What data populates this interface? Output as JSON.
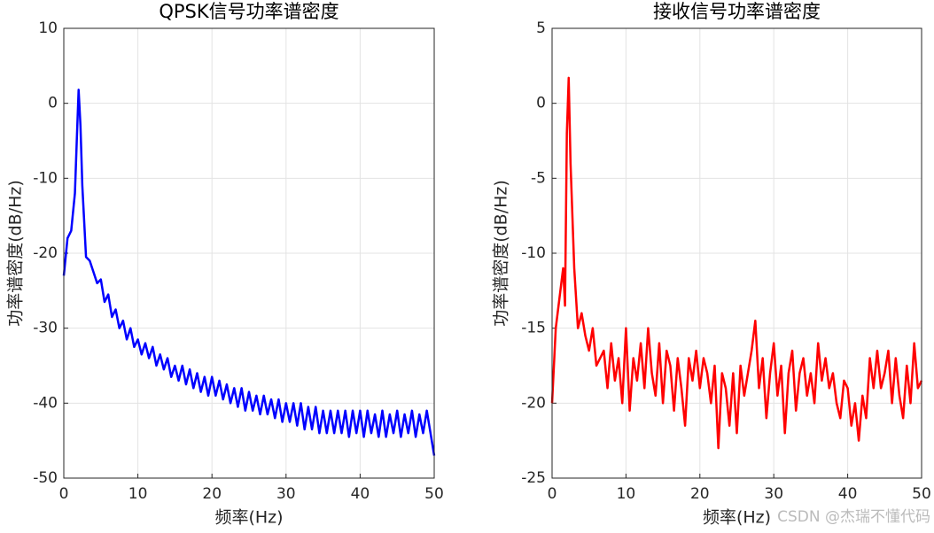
{
  "chart_data": [
    {
      "type": "line",
      "title": "QPSK信号功率谱密度",
      "xlabel": "频率(Hz)",
      "ylabel": "功率谱密度(dB/Hz)",
      "color": "#0000ff",
      "grid": true,
      "xlim": [
        0,
        50
      ],
      "ylim": [
        -50,
        10
      ],
      "xticks": [
        0,
        10,
        20,
        30,
        40,
        50
      ],
      "yticks": [
        -50,
        -40,
        -30,
        -20,
        -10,
        0,
        10
      ],
      "x": [
        0,
        0.5,
        1,
        1.5,
        1.75,
        2,
        2.25,
        2.5,
        3,
        3.5,
        4,
        4.5,
        5,
        5.5,
        6,
        6.5,
        7,
        7.5,
        8,
        8.5,
        9,
        9.5,
        10,
        10.5,
        11,
        11.5,
        12,
        12.5,
        13,
        13.5,
        14,
        14.5,
        15,
        15.5,
        16,
        16.5,
        17,
        17.5,
        18,
        18.5,
        19,
        19.5,
        20,
        20.5,
        21,
        21.5,
        22,
        22.5,
        23,
        23.5,
        24,
        24.5,
        25,
        25.5,
        26,
        26.5,
        27,
        27.5,
        28,
        28.5,
        29,
        29.5,
        30,
        30.5,
        31,
        31.5,
        32,
        32.5,
        33,
        33.5,
        34,
        34.5,
        35,
        35.5,
        36,
        36.5,
        37,
        37.5,
        38,
        38.5,
        39,
        39.5,
        40,
        40.5,
        41,
        41.5,
        42,
        42.5,
        43,
        43.5,
        44,
        44.5,
        45,
        45.5,
        46,
        46.5,
        47,
        47.5,
        48,
        48.5,
        49,
        49.5,
        50
      ],
      "values": [
        -23,
        -18,
        -17,
        -12,
        -5,
        1.8,
        -3,
        -11,
        -20.5,
        -21,
        -22.5,
        -24,
        -23.5,
        -26.5,
        -25.5,
        -28.5,
        -27.5,
        -30,
        -29,
        -31.5,
        -30,
        -32.5,
        -31.5,
        -33.5,
        -32,
        -34,
        -32.5,
        -35,
        -33.5,
        -35.5,
        -34,
        -36.5,
        -35,
        -37,
        -35,
        -37.5,
        -35.5,
        -38,
        -36,
        -38.5,
        -36.5,
        -39,
        -36.5,
        -39,
        -37,
        -39.5,
        -37.5,
        -40,
        -38,
        -40.5,
        -38,
        -41,
        -38.5,
        -41,
        -39,
        -41.5,
        -39,
        -41.5,
        -39.5,
        -42,
        -39.5,
        -42.5,
        -40,
        -42.5,
        -40,
        -43,
        -40,
        -43.5,
        -40.5,
        -43.5,
        -40.5,
        -44,
        -41,
        -44,
        -41,
        -44,
        -41,
        -44,
        -41,
        -44.5,
        -41,
        -44,
        -41,
        -44.5,
        -41,
        -44,
        -41.5,
        -44.5,
        -41,
        -44.5,
        -41.5,
        -44,
        -41,
        -44.5,
        -41.5,
        -44,
        -41,
        -44.5,
        -41.5,
        -44,
        -41,
        -44,
        -47
      ]
    },
    {
      "type": "line",
      "title": "接收信号功率谱密度",
      "xlabel": "频率(Hz)",
      "ylabel": "功率谱密度(dB/Hz)",
      "color": "#ff0000",
      "grid": true,
      "xlim": [
        0,
        50
      ],
      "ylim": [
        -25,
        5
      ],
      "xticks": [
        0,
        10,
        20,
        30,
        40,
        50
      ],
      "yticks": [
        -25,
        -20,
        -15,
        -10,
        -5,
        0,
        5
      ],
      "x": [
        0,
        0.5,
        1,
        1.5,
        1.75,
        2,
        2.25,
        2.5,
        3,
        3.5,
        4,
        4.5,
        5,
        5.5,
        6,
        6.5,
        7,
        7.5,
        8,
        8.5,
        9,
        9.5,
        10,
        10.5,
        11,
        11.5,
        12,
        12.5,
        13,
        13.5,
        14,
        14.5,
        15,
        15.5,
        16,
        16.5,
        17,
        17.5,
        18,
        18.5,
        19,
        19.5,
        20,
        20.5,
        21,
        21.5,
        22,
        22.5,
        23,
        23.5,
        24,
        24.5,
        25,
        25.5,
        26,
        26.5,
        27,
        27.5,
        28,
        28.5,
        29,
        29.5,
        30,
        30.5,
        31,
        31.5,
        32,
        32.5,
        33,
        33.5,
        34,
        34.5,
        35,
        35.5,
        36,
        36.5,
        37,
        37.5,
        38,
        38.5,
        39,
        39.5,
        40,
        40.5,
        41,
        41.5,
        42,
        42.5,
        43,
        43.5,
        44,
        44.5,
        45,
        45.5,
        46,
        46.5,
        47,
        47.5,
        48,
        48.5,
        49,
        49.5,
        50
      ],
      "values": [
        -20,
        -15,
        -13,
        -11,
        -13.5,
        -2,
        1.7,
        -4,
        -11,
        -15,
        -14,
        -15.5,
        -16.5,
        -15,
        -17.5,
        -17,
        -16.5,
        -19,
        -16,
        -18.5,
        -17,
        -20,
        -15,
        -20.5,
        -17,
        -18.5,
        -16,
        -19,
        -15,
        -18,
        -19.5,
        -16,
        -20,
        -16.5,
        -17.5,
        -20.5,
        -17,
        -19,
        -21.5,
        -17,
        -18.5,
        -16.5,
        -19,
        -17,
        -18,
        -20,
        -17.5,
        -23,
        -18,
        -19,
        -21.5,
        -18,
        -22,
        -17.5,
        -19.5,
        -18,
        -16.5,
        -14.5,
        -19,
        -17,
        -21,
        -18,
        -16,
        -19.5,
        -17.5,
        -22,
        -18,
        -16.5,
        -20.5,
        -18,
        -17,
        -19.5,
        -18,
        -20,
        -16,
        -18.5,
        -17,
        -19,
        -18,
        -20,
        -21,
        -18.5,
        -19,
        -21.5,
        -20,
        -22.5,
        -19.5,
        -21,
        -17,
        -19,
        -16.5,
        -19,
        -18,
        -16.5,
        -20,
        -17,
        -19.5,
        -21,
        -17.5,
        -20,
        -16,
        -19,
        -18.5
      ]
    }
  ],
  "watermark": "CSDN @杰瑞不懂代码"
}
